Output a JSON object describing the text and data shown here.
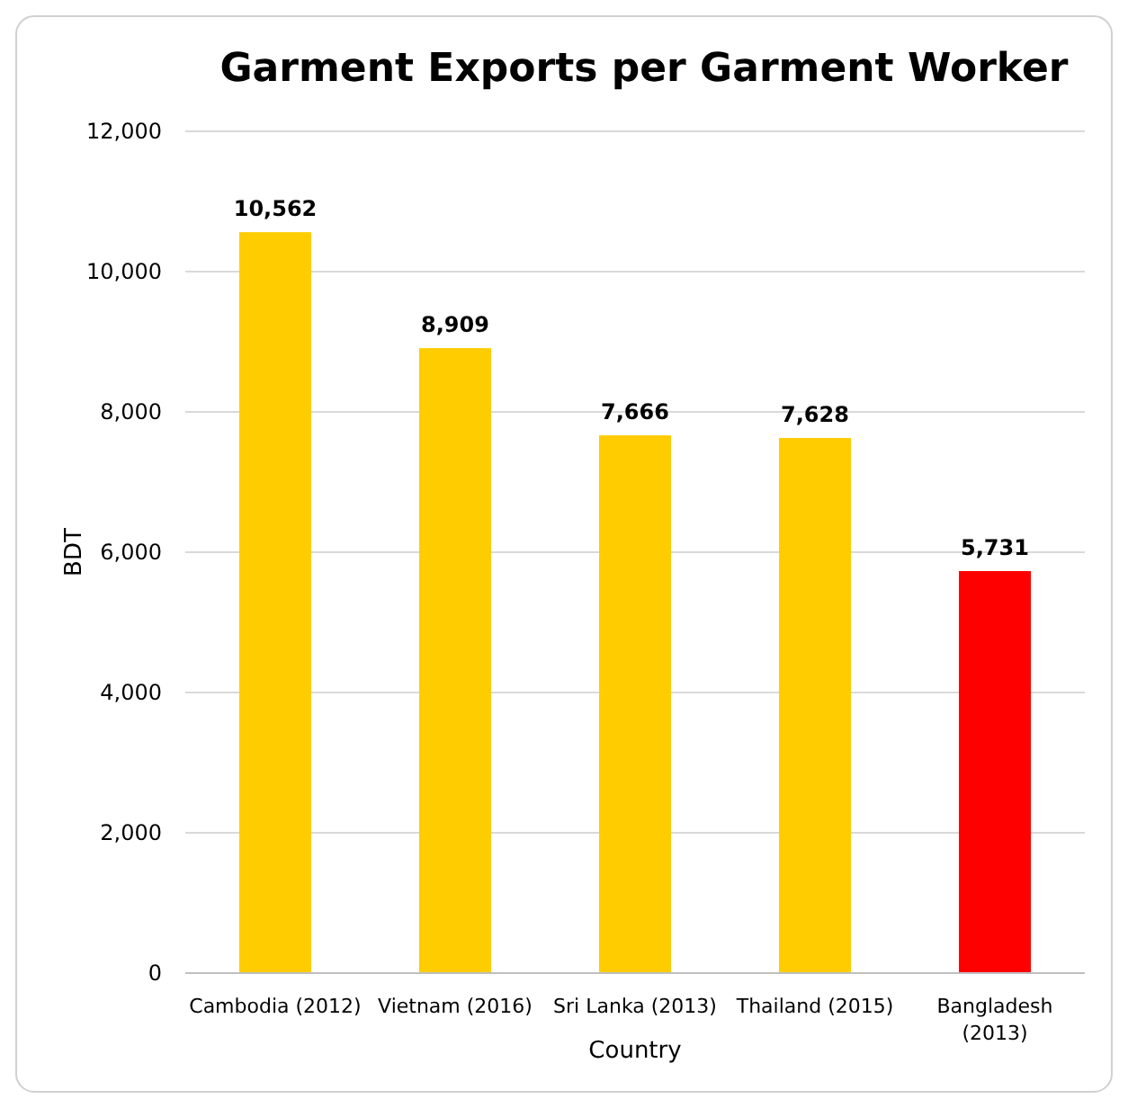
{
  "chart_data": {
    "type": "bar",
    "title": "Garment Exports per Garment Worker",
    "xlabel": "Country",
    "ylabel": "BDT",
    "categories": [
      "Cambodia (2012)",
      "Vietnam (2016)",
      "Sri Lanka (2013)",
      "Thailand (2015)",
      "Bangladesh (2013)"
    ],
    "values": [
      10562,
      8909,
      7666,
      7628,
      5731
    ],
    "colors": [
      "#ffcc00",
      "#ffcc00",
      "#ffcc00",
      "#ffcc00",
      "#ff0000"
    ],
    "value_labels": [
      "10,562",
      "8,909",
      "7,666",
      "7,628",
      "5,731"
    ],
    "ylim": [
      0,
      12000
    ],
    "yticks": [
      {
        "value": 0,
        "label": "0"
      },
      {
        "value": 2000,
        "label": "2,000"
      },
      {
        "value": 4000,
        "label": "4,000"
      },
      {
        "value": 6000,
        "label": "6,000"
      },
      {
        "value": 8000,
        "label": "8,000"
      },
      {
        "value": 10000,
        "label": "10,000"
      },
      {
        "value": 12000,
        "label": "12,000"
      }
    ],
    "grid": "y"
  }
}
